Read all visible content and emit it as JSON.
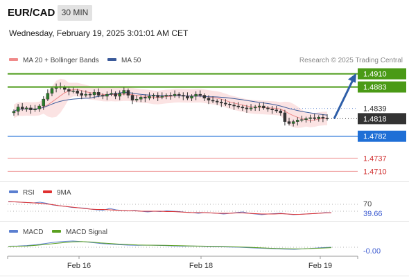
{
  "header": {
    "symbol": "EUR/CAD",
    "timeframe": "30 MIN",
    "datetime": "Wednesday, February 19, 2025 3:01:01 AM CET"
  },
  "main_legend": {
    "items": [
      {
        "label": "MA 20 + Bollinger Bands",
        "color": "#f08a8a"
      },
      {
        "label": "MA 50",
        "color": "#3b5a9a"
      }
    ],
    "source": "Research © 2025 Trading Central"
  },
  "colors": {
    "resistance": "#4a9a16",
    "support_blue": "#1f6fd6",
    "support_red": "#e05050",
    "current": "#333333",
    "arrow": "#2e5ea8",
    "band_fill": "#fbe3e3",
    "ma20": "#f08a8a",
    "ma50": "#3b5a9a",
    "rsi": "#5b7fd0",
    "rsi_ma": "#e03030",
    "macd": "#5b7fd0",
    "macd_signal": "#5aa020"
  },
  "chart_data": [
    {
      "type": "candlestick",
      "y_range": [
        1.4695,
        1.4925
      ],
      "x_ticks": [
        "Feb 16",
        "Feb 18",
        "Feb 19"
      ],
      "levels": [
        {
          "value": 1.491,
          "label": "1.4910",
          "kind": "resistance"
        },
        {
          "value": 1.4883,
          "label": "1.4883",
          "kind": "resistance"
        },
        {
          "value": 1.4839,
          "label": "1.4839",
          "kind": "reference"
        },
        {
          "value": 1.4818,
          "label": "1.4818",
          "kind": "current"
        },
        {
          "value": 1.4782,
          "label": "1.4782",
          "kind": "support_blue"
        },
        {
          "value": 1.4737,
          "label": "1.4737",
          "kind": "support_red"
        },
        {
          "value": 1.471,
          "label": "1.4710",
          "kind": "support_red"
        }
      ],
      "close_path": [
        1.4833,
        1.4842,
        1.4838,
        1.484,
        1.4836,
        1.4838,
        1.4844,
        1.4858,
        1.487,
        1.488,
        1.4884,
        1.4882,
        1.4878,
        1.4874,
        1.4875,
        1.487,
        1.4866,
        1.4868,
        1.4867,
        1.4872,
        1.4866,
        1.4864,
        1.4868,
        1.487,
        1.4864,
        1.487,
        1.4876,
        1.4866,
        1.4856,
        1.4858,
        1.4862,
        1.486,
        1.4864,
        1.4866,
        1.4862,
        1.4864,
        1.4866,
        1.4865,
        1.4868,
        1.4866,
        1.4864,
        1.486,
        1.4864,
        1.4868,
        1.4866,
        1.486,
        1.4856,
        1.4854,
        1.4852,
        1.485,
        1.4848,
        1.4846,
        1.4844,
        1.4842,
        1.484,
        1.4838,
        1.484,
        1.4842,
        1.4844,
        1.484,
        1.4838,
        1.4836,
        1.4834,
        1.483,
        1.4812,
        1.4808,
        1.4812,
        1.4815,
        1.4816,
        1.4818,
        1.482,
        1.4818,
        1.4821,
        1.4819,
        1.4818
      ],
      "forecast": {
        "from": 1.4818,
        "to": 1.491
      }
    },
    {
      "type": "line",
      "legend": [
        "RSI",
        "9MA"
      ],
      "levels": [
        70
      ],
      "level_labels": [
        "70"
      ],
      "current_label": "39.66",
      "rsi": [
        72,
        71,
        70,
        69,
        68,
        70,
        67,
        62,
        60,
        58,
        55,
        54,
        53,
        50,
        48,
        47,
        52,
        48,
        46,
        45,
        46,
        44,
        42,
        44,
        43,
        45,
        44,
        43,
        41,
        40,
        38,
        40,
        39,
        38,
        36,
        38,
        40,
        42,
        38,
        36,
        34,
        36,
        37,
        38,
        36,
        34,
        35,
        36,
        37,
        38,
        40,
        39.66
      ],
      "rsi_ma": [
        71,
        71,
        70,
        69,
        68,
        67,
        65,
        63,
        60,
        58,
        56,
        54,
        52,
        50,
        49,
        49,
        48,
        47,
        46,
        45,
        45,
        44,
        44,
        44,
        44,
        43,
        43,
        42,
        41,
        40,
        40,
        40,
        39,
        38,
        38,
        38,
        39,
        39,
        38,
        37,
        36,
        36,
        36,
        37,
        36,
        35,
        35,
        36,
        37,
        38,
        39,
        39.5
      ]
    },
    {
      "type": "line",
      "legend": [
        "MACD",
        "MACD Signal"
      ],
      "levels": [
        0
      ],
      "level_labels": [
        "0"
      ],
      "current_label": "-0.00",
      "macd": [
        0.5,
        0.6,
        0.8,
        1.2,
        1.8,
        2.4,
        2.8,
        3.0,
        2.7,
        2.3,
        1.8,
        1.5,
        1.2,
        1.0,
        0.9,
        1.0,
        0.9,
        0.8,
        0.6,
        0.5,
        0.6,
        0.4,
        0.3,
        0.2,
        0.1,
        0.0,
        -0.2,
        -0.4,
        -0.6,
        -0.8,
        -0.9,
        -1.0,
        -0.8,
        -0.5,
        -0.2,
        0.0
      ],
      "signal": [
        0.4,
        0.5,
        0.6,
        0.9,
        1.3,
        1.8,
        2.2,
        2.6,
        2.7,
        2.5,
        2.1,
        1.8,
        1.5,
        1.3,
        1.1,
        1.0,
        0.95,
        0.9,
        0.8,
        0.7,
        0.6,
        0.55,
        0.45,
        0.35,
        0.25,
        0.15,
        0.0,
        -0.2,
        -0.4,
        -0.6,
        -0.7,
        -0.8,
        -0.75,
        -0.6,
        -0.4,
        -0.2
      ]
    }
  ]
}
